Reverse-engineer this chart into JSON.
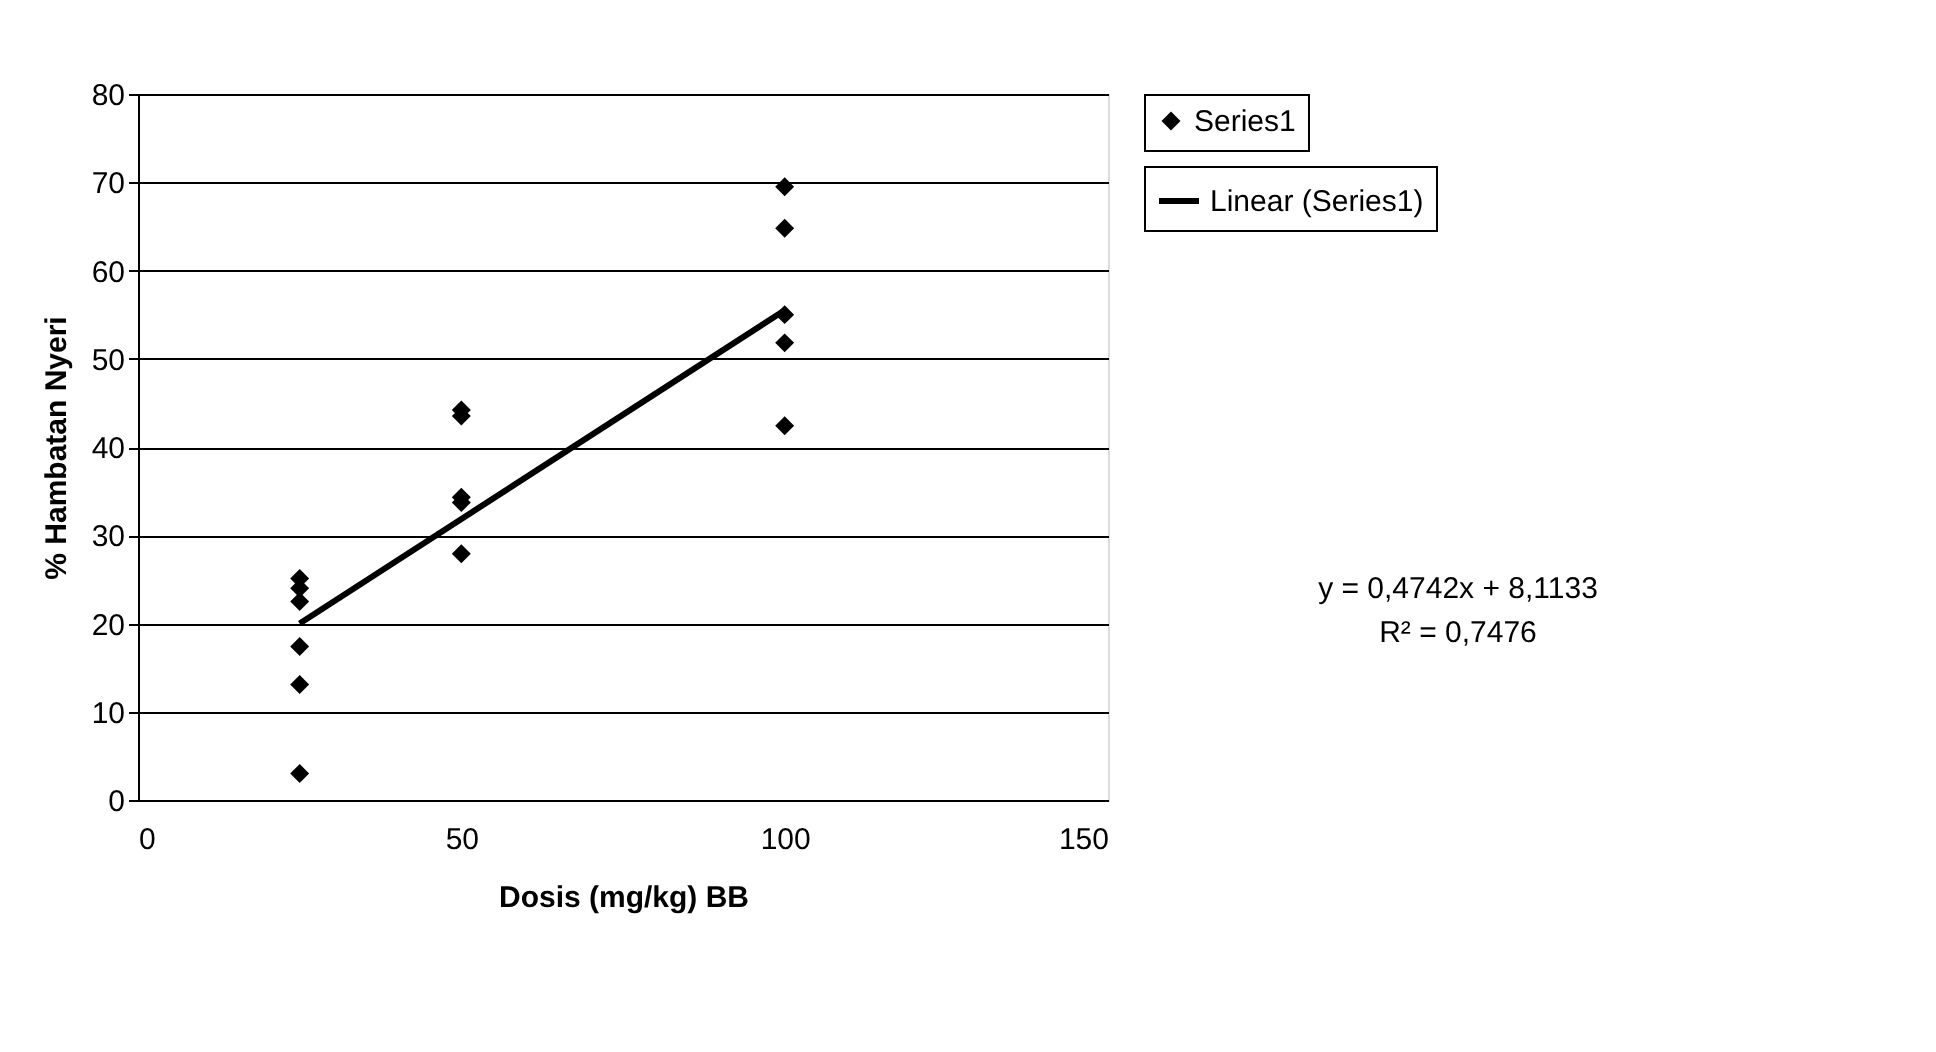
{
  "chart_data": {
    "type": "scatter",
    "xlabel": "Dosis (mg/kg) BB",
    "ylabel": "% Hambatan Nyeri",
    "xlim": [
      0,
      150
    ],
    "xticks": [
      0,
      50,
      100,
      150
    ],
    "ylim": [
      0,
      80
    ],
    "yticks": [
      0,
      10,
      20,
      30,
      40,
      50,
      60,
      70,
      80
    ],
    "grid": "y",
    "legend": "right",
    "series": [
      {
        "name": "Series1",
        "color": "#000000",
        "marker": "diamond",
        "x": [
          25,
          25,
          25,
          25,
          25,
          25,
          50,
          50,
          50,
          50,
          50,
          100,
          100,
          100,
          100,
          100
        ],
        "values": [
          25.1,
          24.0,
          22.5,
          17.4,
          13.1,
          3.0,
          44.2,
          43.5,
          34.3,
          33.7,
          27.9,
          69.5,
          64.8,
          55.0,
          51.8,
          42.4
        ]
      },
      {
        "name": "Linear (Series1)",
        "color": "#000000",
        "type": "line",
        "marker": "none",
        "line_style": "solid",
        "x": [
          25,
          100
        ],
        "values": [
          20.0,
          55.5
        ]
      }
    ],
    "annotations": [
      "y = 0,4742x + 8,1133",
      "R² = 0,7476"
    ]
  }
}
